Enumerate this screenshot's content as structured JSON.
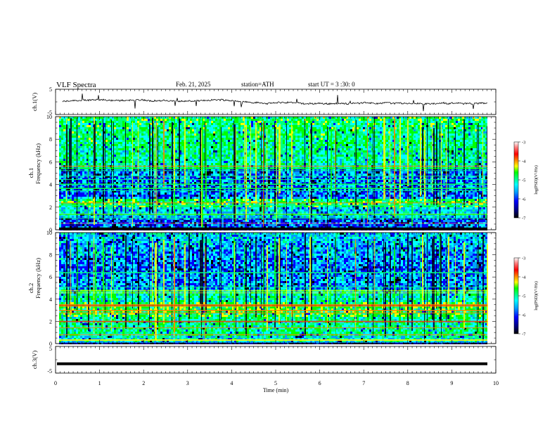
{
  "header": {
    "title": "VLF  Spectra",
    "date": "Feb. 21, 2025",
    "station": "station=ATH",
    "start": "start  UT  =   3  :30: 0"
  },
  "chart_data": [
    {
      "type": "line",
      "ylabel": "ch.1(V)",
      "ylim": [
        -5,
        5
      ],
      "yticks": [
        "5",
        "-5"
      ],
      "xlim": [
        0,
        10
      ],
      "note": "time series near 0 V with small fluctuations and spikes"
    },
    {
      "type": "heatmap",
      "ylabel_lines": [
        "ch.1",
        "Frequency  (kHz)"
      ],
      "ylim": [
        0,
        10
      ],
      "yticks": [
        "0",
        "2",
        "4",
        "6",
        "8",
        "10"
      ],
      "xlim": [
        0,
        10
      ],
      "colorbar": {
        "label": "log(PSD)(V²/Hz)",
        "range": [
          -7,
          -3
        ],
        "ticks": [
          "-3",
          "-4",
          "-5",
          "-6",
          "-7"
        ]
      }
    },
    {
      "type": "heatmap",
      "ylabel_lines": [
        "ch.2",
        "Frequency  (kHz)"
      ],
      "ylim": [
        0,
        10
      ],
      "yticks": [
        "0",
        "2",
        "4",
        "6",
        "8",
        "10"
      ],
      "xlim": [
        0,
        10
      ],
      "colorbar": {
        "label": "log(PSD)(V²/Hz)",
        "range": [
          -7,
          -3
        ],
        "ticks": [
          "-3",
          "-4",
          "-5",
          "-6",
          "-7"
        ]
      }
    },
    {
      "type": "line",
      "ylabel": "ch.3(V)",
      "ylim": [
        -5,
        5
      ],
      "yticks": [
        "5",
        "-5"
      ],
      "xlim": [
        0,
        10
      ],
      "xlabel": "Time  (min)",
      "xticks": [
        "0",
        "1",
        "2",
        "3",
        "4",
        "5",
        "6",
        "7",
        "8",
        "9",
        "10"
      ],
      "level": -1.5,
      "note": "flat thick line at about -1.5 V"
    }
  ],
  "colors": {
    "colormap": [
      "#000000",
      "#000080",
      "#0000ff",
      "#00a0ff",
      "#00ffff",
      "#00ff80",
      "#00ff00",
      "#ffff00",
      "#ff8000",
      "#ff0000",
      "#ff8080",
      "#ffffff"
    ]
  }
}
